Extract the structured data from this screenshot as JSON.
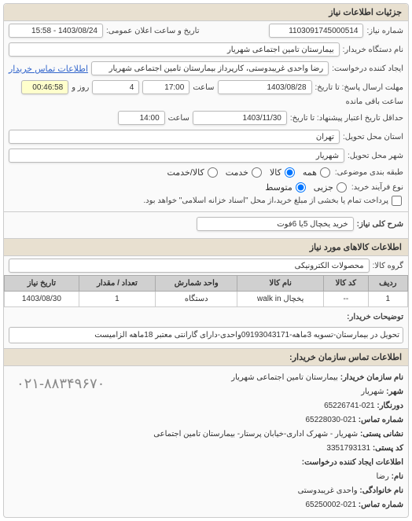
{
  "panel_title": "جزئیات اطلاعات نیاز",
  "rows": {
    "number_label": "شماره نیاز:",
    "number_value": "1103091745000514",
    "announce_label": "تاریخ و ساعت اعلان عمومی:",
    "announce_value": "1403/08/24 - 15:58",
    "buyer_device_label": "نام دستگاه خریدار:",
    "buyer_device_value": "بیمارستان تامین اجتماعی شهریار",
    "creator_label": "ایجاد کننده درخواست:",
    "creator_value": "رضا واحدی غریبدوستی، کارپرداز بیمارستان تامین اجتماعی شهریار",
    "contact_link": "اطلاعات تماس خریدار",
    "deadline_label": "مهلت ارسال پاسخ: تا تاریخ:",
    "deadline_date": "1403/08/28",
    "deadline_time_label": "ساعت",
    "deadline_time": "17:00",
    "days_value": "4",
    "days_label": "روز و",
    "remain_time": "00:46:58",
    "remain_label": "ساعت باقی مانده",
    "min_validity_label": "حداقل تاریخ اعتبار پیشنهاد: تا تاریخ:",
    "min_validity_date": "1403/11/30",
    "min_validity_time": "14:00",
    "delivery_province_label": "استان محل تحویل:",
    "delivery_province": "تهران",
    "delivery_city_label": "شهر محل تحویل:",
    "delivery_city": "شهریار",
    "category_label": "طبقه بندی موضوعی:",
    "opt_all": "همه",
    "opt_goods": "کالا",
    "opt_service": "خدمت",
    "opt_goods_service": "کالا/خدمت",
    "process_label": "نوع فرآیند خرید:",
    "opt_small": "جزیی",
    "opt_medium": "متوسط",
    "process_note": "پرداخت تمام یا بخشی از مبلغ خرید،از محل \"اسناد خزانه اسلامی\" خواهد بود.",
    "desc_label": "شرح کلی نیاز:",
    "desc_value": "خرید یخچال 5یا 6فوت"
  },
  "items_section_title": "اطلاعات کالاهای مورد نیاز",
  "group_label": "گروه کالا:",
  "group_value": "محصولات الکترونیکی",
  "table": {
    "headers": [
      "ردیف",
      "کد کالا",
      "نام کالا",
      "واحد شمارش",
      "تعداد / مقدار",
      "تاریخ نیاز"
    ],
    "rows": [
      [
        "1",
        "--",
        "یخچال walk in",
        "دستگاه",
        "1",
        "1403/08/30"
      ]
    ]
  },
  "buyer_notes_label": "توضیحات خریدار:",
  "buyer_notes": "تحویل در بیمارستان-تسویه 3ماهه-09193043171واحدی-دارای گارانتی معتبر 18ماهه الزامیست",
  "contact_section_title": "اطلاعات تماس سازمان خریدار:",
  "contact": {
    "org_label": "نام سازمان خریدار:",
    "org_value": "بیمارستان تامین اجتماعی شهریار",
    "city_label": "شهر:",
    "city_value": "شهریار",
    "reception_label": "دورنگار:",
    "reception_value": "021-65226741",
    "phone_label": "شماره تماس:",
    "phone_value": "021-65228030",
    "address_label": "نشانی پستی:",
    "address_value": "شهریار - شهرک اداری-خیابان پرستار- بیمارستان تامین اجتماعی",
    "postal_label": "کد پستی:",
    "postal_value": "3351793131",
    "creator_section": "اطلاعات ایجاد کننده درخواست:",
    "name_label": "نام:",
    "name_value": "رضا",
    "family_label": "نام خانوادگی:",
    "family_value": "واحدی غریبدوستی",
    "cphone_label": "شماره تماس:",
    "cphone_value": "021-65250002",
    "big_phone": "۰۲۱-۸۸۳۴۹۶۷۰"
  }
}
